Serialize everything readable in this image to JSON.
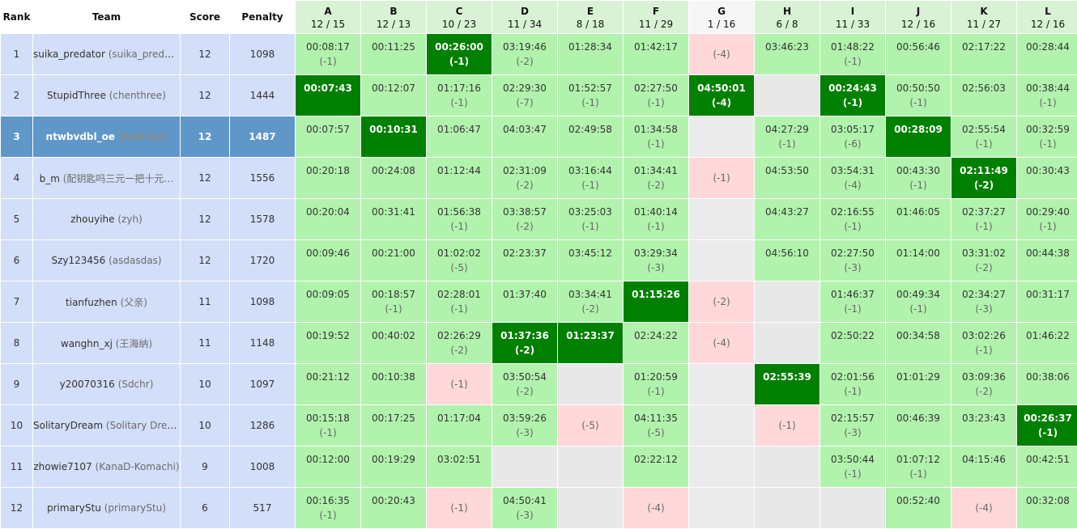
{
  "headers": {
    "rank": "Rank",
    "team": "Team",
    "score": "Score",
    "penalty": "Penalty"
  },
  "problems": [
    {
      "label": "A",
      "ratio": "12 / 15"
    },
    {
      "label": "B",
      "ratio": "12 / 13"
    },
    {
      "label": "C",
      "ratio": "10 / 23"
    },
    {
      "label": "D",
      "ratio": "11 / 34"
    },
    {
      "label": "E",
      "ratio": "8 / 18"
    },
    {
      "label": "F",
      "ratio": "11 / 29"
    },
    {
      "label": "G",
      "ratio": "1 / 16"
    },
    {
      "label": "H",
      "ratio": "6 / 8"
    },
    {
      "label": "I",
      "ratio": "11 / 33"
    },
    {
      "label": "J",
      "ratio": "12 / 16"
    },
    {
      "label": "K",
      "ratio": "11 / 27"
    },
    {
      "label": "L",
      "ratio": "12 / 16"
    }
  ],
  "colors": {
    "accepted": "#b1f3ad",
    "first_blood": "#008000",
    "wrong": "#ffd9d9",
    "no_attempt": "#e8e8e8",
    "team_bg": "#d3def9",
    "highlight": "#5f97c9"
  },
  "rows": [
    {
      "rank": "1",
      "name": "suika_predator",
      "alias": "(suika_predat…",
      "score": "12",
      "penalty": "1098",
      "cells": [
        {
          "s": "ac",
          "t": "00:08:17",
          "tr": "(-1)"
        },
        {
          "s": "ac",
          "t": "00:11:25",
          "tr": ""
        },
        {
          "s": "fb",
          "t": "00:26:00",
          "tr": "(-1)"
        },
        {
          "s": "ac",
          "t": "03:19:46",
          "tr": "(-2)"
        },
        {
          "s": "ac",
          "t": "01:28:34",
          "tr": ""
        },
        {
          "s": "ac",
          "t": "01:42:17",
          "tr": ""
        },
        {
          "s": "wa",
          "t": "",
          "tr": "(-4)"
        },
        {
          "s": "ac",
          "t": "03:46:23",
          "tr": ""
        },
        {
          "s": "ac",
          "t": "01:48:22",
          "tr": "(-1)"
        },
        {
          "s": "ac",
          "t": "00:56:46",
          "tr": ""
        },
        {
          "s": "ac",
          "t": "02:17:22",
          "tr": ""
        },
        {
          "s": "ac",
          "t": "00:28:44",
          "tr": ""
        }
      ]
    },
    {
      "rank": "2",
      "name": "StupidThree",
      "alias": "(chenthree)",
      "score": "12",
      "penalty": "1444",
      "cells": [
        {
          "s": "fb",
          "t": "00:07:43",
          "tr": ""
        },
        {
          "s": "ac",
          "t": "00:12:07",
          "tr": ""
        },
        {
          "s": "ac",
          "t": "01:17:16",
          "tr": "(-1)"
        },
        {
          "s": "ac",
          "t": "02:29:30",
          "tr": "(-7)"
        },
        {
          "s": "ac",
          "t": "01:52:57",
          "tr": "(-1)"
        },
        {
          "s": "ac",
          "t": "02:27:50",
          "tr": "(-1)"
        },
        {
          "s": "fb",
          "t": "04:50:01",
          "tr": "(-4)"
        },
        {
          "s": "none",
          "t": "",
          "tr": ""
        },
        {
          "s": "fb",
          "t": "00:24:43",
          "tr": "(-1)"
        },
        {
          "s": "ac",
          "t": "00:50:50",
          "tr": "(-1)"
        },
        {
          "s": "ac",
          "t": "02:56:03",
          "tr": ""
        },
        {
          "s": "ac",
          "t": "00:38:44",
          "tr": "(-1)"
        }
      ]
    },
    {
      "rank": "3",
      "name": "ntwbvdbl_oe",
      "alias": "(Refrain)",
      "score": "12",
      "penalty": "1487",
      "me": true,
      "cells": [
        {
          "s": "ac",
          "t": "00:07:57",
          "tr": ""
        },
        {
          "s": "fb",
          "t": "00:10:31",
          "tr": ""
        },
        {
          "s": "ac",
          "t": "01:06:47",
          "tr": ""
        },
        {
          "s": "ac",
          "t": "04:03:47",
          "tr": ""
        },
        {
          "s": "ac",
          "t": "02:49:58",
          "tr": ""
        },
        {
          "s": "ac",
          "t": "01:34:58",
          "tr": "(-1)"
        },
        {
          "s": "none",
          "t": "",
          "tr": ""
        },
        {
          "s": "ac",
          "t": "04:27:29",
          "tr": "(-1)"
        },
        {
          "s": "ac",
          "t": "03:05:17",
          "tr": "(-6)"
        },
        {
          "s": "fb",
          "t": "00:28:09",
          "tr": ""
        },
        {
          "s": "ac",
          "t": "02:55:54",
          "tr": "(-1)"
        },
        {
          "s": "ac",
          "t": "00:32:59",
          "tr": "(-1)"
        }
      ]
    },
    {
      "rank": "4",
      "name": "b_m",
      "alias": "(配钥匙吗三元一把十元…",
      "score": "12",
      "penalty": "1556",
      "cells": [
        {
          "s": "ac",
          "t": "00:20:18",
          "tr": ""
        },
        {
          "s": "ac",
          "t": "00:24:08",
          "tr": ""
        },
        {
          "s": "ac",
          "t": "01:12:44",
          "tr": ""
        },
        {
          "s": "ac",
          "t": "02:31:09",
          "tr": "(-2)"
        },
        {
          "s": "ac",
          "t": "03:16:44",
          "tr": "(-1)"
        },
        {
          "s": "ac",
          "t": "01:34:41",
          "tr": "(-2)"
        },
        {
          "s": "wa",
          "t": "",
          "tr": "(-1)"
        },
        {
          "s": "ac",
          "t": "04:53:50",
          "tr": ""
        },
        {
          "s": "ac",
          "t": "03:54:31",
          "tr": "(-4)"
        },
        {
          "s": "ac",
          "t": "00:43:30",
          "tr": "(-1)"
        },
        {
          "s": "fb",
          "t": "02:11:49",
          "tr": "(-2)"
        },
        {
          "s": "ac",
          "t": "00:30:43",
          "tr": ""
        }
      ]
    },
    {
      "rank": "5",
      "name": "zhouyihe",
      "alias": "(zyh)",
      "score": "12",
      "penalty": "1578",
      "cells": [
        {
          "s": "ac",
          "t": "00:20:04",
          "tr": ""
        },
        {
          "s": "ac",
          "t": "00:31:41",
          "tr": ""
        },
        {
          "s": "ac",
          "t": "01:56:38",
          "tr": "(-1)"
        },
        {
          "s": "ac",
          "t": "03:38:57",
          "tr": "(-2)"
        },
        {
          "s": "ac",
          "t": "03:25:03",
          "tr": "(-1)"
        },
        {
          "s": "ac",
          "t": "01:40:14",
          "tr": "(-1)"
        },
        {
          "s": "none",
          "t": "",
          "tr": ""
        },
        {
          "s": "ac",
          "t": "04:43:27",
          "tr": ""
        },
        {
          "s": "ac",
          "t": "02:16:55",
          "tr": "(-1)"
        },
        {
          "s": "ac",
          "t": "01:46:05",
          "tr": ""
        },
        {
          "s": "ac",
          "t": "02:37:27",
          "tr": "(-1)"
        },
        {
          "s": "ac",
          "t": "00:29:40",
          "tr": "(-1)"
        }
      ]
    },
    {
      "rank": "6",
      "name": "Szy123456",
      "alias": "(asdasdas)",
      "score": "12",
      "penalty": "1720",
      "cells": [
        {
          "s": "ac",
          "t": "00:09:46",
          "tr": ""
        },
        {
          "s": "ac",
          "t": "00:21:00",
          "tr": ""
        },
        {
          "s": "ac",
          "t": "01:02:02",
          "tr": "(-5)"
        },
        {
          "s": "ac",
          "t": "02:23:37",
          "tr": ""
        },
        {
          "s": "ac",
          "t": "03:45:12",
          "tr": ""
        },
        {
          "s": "ac",
          "t": "03:29:34",
          "tr": "(-3)"
        },
        {
          "s": "none",
          "t": "",
          "tr": ""
        },
        {
          "s": "ac",
          "t": "04:56:10",
          "tr": ""
        },
        {
          "s": "ac",
          "t": "02:27:50",
          "tr": "(-3)"
        },
        {
          "s": "ac",
          "t": "01:14:00",
          "tr": ""
        },
        {
          "s": "ac",
          "t": "03:31:02",
          "tr": "(-2)"
        },
        {
          "s": "ac",
          "t": "00:44:38",
          "tr": ""
        }
      ]
    },
    {
      "rank": "7",
      "name": "tianfuzhen",
      "alias": "(父亲)",
      "score": "11",
      "penalty": "1098",
      "cells": [
        {
          "s": "ac",
          "t": "00:09:05",
          "tr": ""
        },
        {
          "s": "ac",
          "t": "00:18:57",
          "tr": "(-1)"
        },
        {
          "s": "ac",
          "t": "02:28:01",
          "tr": "(-1)"
        },
        {
          "s": "ac",
          "t": "01:37:40",
          "tr": ""
        },
        {
          "s": "ac",
          "t": "03:34:41",
          "tr": "(-2)"
        },
        {
          "s": "fb",
          "t": "01:15:26",
          "tr": ""
        },
        {
          "s": "wa",
          "t": "",
          "tr": "(-2)"
        },
        {
          "s": "none",
          "t": "",
          "tr": ""
        },
        {
          "s": "ac",
          "t": "01:46:37",
          "tr": "(-1)"
        },
        {
          "s": "ac",
          "t": "00:49:34",
          "tr": "(-1)"
        },
        {
          "s": "ac",
          "t": "02:34:27",
          "tr": "(-3)"
        },
        {
          "s": "ac",
          "t": "00:31:17",
          "tr": ""
        }
      ]
    },
    {
      "rank": "8",
      "name": "wanghn_xj",
      "alias": "(王海纳)",
      "score": "11",
      "penalty": "1148",
      "cells": [
        {
          "s": "ac",
          "t": "00:19:52",
          "tr": ""
        },
        {
          "s": "ac",
          "t": "00:40:02",
          "tr": ""
        },
        {
          "s": "ac",
          "t": "02:26:29",
          "tr": "(-2)"
        },
        {
          "s": "fb",
          "t": "01:37:36",
          "tr": "(-2)"
        },
        {
          "s": "fb",
          "t": "01:23:37",
          "tr": ""
        },
        {
          "s": "ac",
          "t": "02:24:22",
          "tr": ""
        },
        {
          "s": "wa",
          "t": "",
          "tr": "(-4)"
        },
        {
          "s": "none",
          "t": "",
          "tr": ""
        },
        {
          "s": "ac",
          "t": "02:50:22",
          "tr": ""
        },
        {
          "s": "ac",
          "t": "00:34:58",
          "tr": ""
        },
        {
          "s": "ac",
          "t": "03:02:26",
          "tr": "(-1)"
        },
        {
          "s": "ac",
          "t": "01:46:22",
          "tr": ""
        }
      ]
    },
    {
      "rank": "9",
      "name": "y20070316",
      "alias": "(Sdchr)",
      "score": "10",
      "penalty": "1097",
      "cells": [
        {
          "s": "ac",
          "t": "00:21:12",
          "tr": ""
        },
        {
          "s": "ac",
          "t": "00:10:38",
          "tr": ""
        },
        {
          "s": "wa",
          "t": "",
          "tr": "(-1)"
        },
        {
          "s": "ac",
          "t": "03:50:54",
          "tr": "(-2)"
        },
        {
          "s": "none",
          "t": "",
          "tr": ""
        },
        {
          "s": "ac",
          "t": "01:20:59",
          "tr": "(-1)"
        },
        {
          "s": "none",
          "t": "",
          "tr": ""
        },
        {
          "s": "fb",
          "t": "02:55:39",
          "tr": ""
        },
        {
          "s": "ac",
          "t": "02:01:56",
          "tr": "(-1)"
        },
        {
          "s": "ac",
          "t": "01:01:29",
          "tr": ""
        },
        {
          "s": "ac",
          "t": "03:09:36",
          "tr": "(-2)"
        },
        {
          "s": "ac",
          "t": "00:38:06",
          "tr": ""
        }
      ]
    },
    {
      "rank": "10",
      "name": "SolitaryDream",
      "alias": "(Solitary Dream)",
      "score": "10",
      "penalty": "1286",
      "cells": [
        {
          "s": "ac",
          "t": "00:15:18",
          "tr": "(-1)"
        },
        {
          "s": "ac",
          "t": "00:17:25",
          "tr": ""
        },
        {
          "s": "ac",
          "t": "01:17:04",
          "tr": ""
        },
        {
          "s": "ac",
          "t": "03:59:26",
          "tr": "(-3)"
        },
        {
          "s": "wa",
          "t": "",
          "tr": "(-5)"
        },
        {
          "s": "ac",
          "t": "04:11:35",
          "tr": "(-5)"
        },
        {
          "s": "none",
          "t": "",
          "tr": ""
        },
        {
          "s": "wa",
          "t": "",
          "tr": "(-1)"
        },
        {
          "s": "ac",
          "t": "02:15:57",
          "tr": "(-3)"
        },
        {
          "s": "ac",
          "t": "00:46:39",
          "tr": ""
        },
        {
          "s": "ac",
          "t": "03:23:43",
          "tr": ""
        },
        {
          "s": "fb",
          "t": "00:26:37",
          "tr": "(-1)"
        }
      ]
    },
    {
      "rank": "11",
      "name": "zhowie7107",
      "alias": "(KanaD-Komachi)",
      "score": "9",
      "penalty": "1008",
      "cells": [
        {
          "s": "ac",
          "t": "00:12:00",
          "tr": ""
        },
        {
          "s": "ac",
          "t": "00:19:29",
          "tr": ""
        },
        {
          "s": "ac",
          "t": "03:02:51",
          "tr": ""
        },
        {
          "s": "none",
          "t": "",
          "tr": ""
        },
        {
          "s": "none",
          "t": "",
          "tr": ""
        },
        {
          "s": "ac",
          "t": "02:22:12",
          "tr": ""
        },
        {
          "s": "none",
          "t": "",
          "tr": ""
        },
        {
          "s": "none",
          "t": "",
          "tr": ""
        },
        {
          "s": "ac",
          "t": "03:50:44",
          "tr": "(-1)"
        },
        {
          "s": "ac",
          "t": "01:07:12",
          "tr": "(-1)"
        },
        {
          "s": "ac",
          "t": "04:15:46",
          "tr": ""
        },
        {
          "s": "ac",
          "t": "00:42:51",
          "tr": ""
        }
      ]
    },
    {
      "rank": "12",
      "name": "primaryStu",
      "alias": "(primaryStu)",
      "score": "6",
      "penalty": "517",
      "cells": [
        {
          "s": "ac",
          "t": "00:16:35",
          "tr": "(-1)"
        },
        {
          "s": "ac",
          "t": "00:20:43",
          "tr": ""
        },
        {
          "s": "wa",
          "t": "",
          "tr": "(-1)"
        },
        {
          "s": "ac",
          "t": "04:50:41",
          "tr": "(-3)"
        },
        {
          "s": "none",
          "t": "",
          "tr": ""
        },
        {
          "s": "wa",
          "t": "",
          "tr": "(-4)"
        },
        {
          "s": "none",
          "t": "",
          "tr": ""
        },
        {
          "s": "none",
          "t": "",
          "tr": ""
        },
        {
          "s": "none",
          "t": "",
          "tr": ""
        },
        {
          "s": "ac",
          "t": "00:52:40",
          "tr": ""
        },
        {
          "s": "wa",
          "t": "",
          "tr": "(-4)"
        },
        {
          "s": "ac",
          "t": "00:32:08",
          "tr": ""
        }
      ]
    }
  ]
}
